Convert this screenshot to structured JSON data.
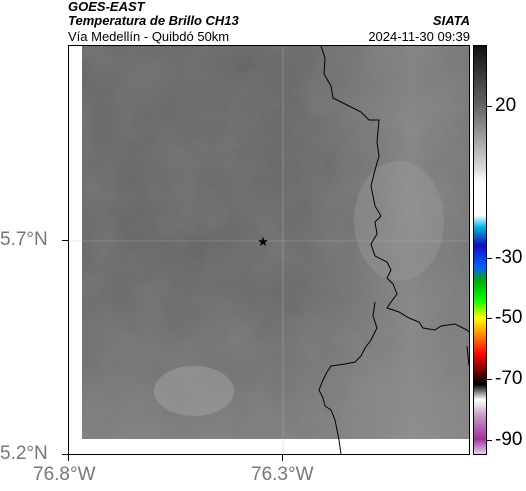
{
  "header": {
    "satellite": "GOES-EAST",
    "product": "Temperatura de Brillo CH13",
    "region": "Vía Medellín - Quibdó 50km",
    "org": "SIATA",
    "timestamp": "2024-11-30 09:39"
  },
  "axes": {
    "y_ticks": [
      {
        "label": "5.7°N",
        "value": 5.7
      },
      {
        "label": "5.2°N",
        "value": 5.2
      }
    ],
    "x_ticks": [
      {
        "label": "76.8°W",
        "value": -76.8
      },
      {
        "label": "76.3°W",
        "value": -76.3
      }
    ]
  },
  "colorbar": {
    "ticks": [
      {
        "label": "20",
        "value": 20
      },
      {
        "label": "-30",
        "value": -30
      },
      {
        "label": "-50",
        "value": -50
      },
      {
        "label": "-70",
        "value": -70
      },
      {
        "label": "-90",
        "value": -90
      }
    ],
    "range": [
      -95,
      40
    ],
    "stops": [
      {
        "value": 40,
        "color": "#111111"
      },
      {
        "value": 20,
        "color": "#666666"
      },
      {
        "value": 0,
        "color": "#d6d6d6"
      },
      {
        "value": -5,
        "color": "#ffffff"
      },
      {
        "value": -16,
        "color": "#ffffff"
      },
      {
        "value": -20,
        "color": "#00b4e0"
      },
      {
        "value": -26,
        "color": "#1010c0"
      },
      {
        "value": -33,
        "color": "#0060ff"
      },
      {
        "value": -38,
        "color": "#00b000"
      },
      {
        "value": -44,
        "color": "#00ff00"
      },
      {
        "value": -50,
        "color": "#ffff00"
      },
      {
        "value": -56,
        "color": "#ff8000"
      },
      {
        "value": -62,
        "color": "#ff0000"
      },
      {
        "value": -67,
        "color": "#800000"
      },
      {
        "value": -72,
        "color": "#000000"
      },
      {
        "value": -77,
        "color": "#ffffff"
      },
      {
        "value": -82,
        "color": "#c8a0c8"
      },
      {
        "value": -90,
        "color": "#a030a0"
      },
      {
        "value": -95,
        "color": "#e8d0e8"
      }
    ]
  },
  "map": {
    "marker": "star",
    "background_gray": "#6a6a6a",
    "border_color": "#000000"
  }
}
